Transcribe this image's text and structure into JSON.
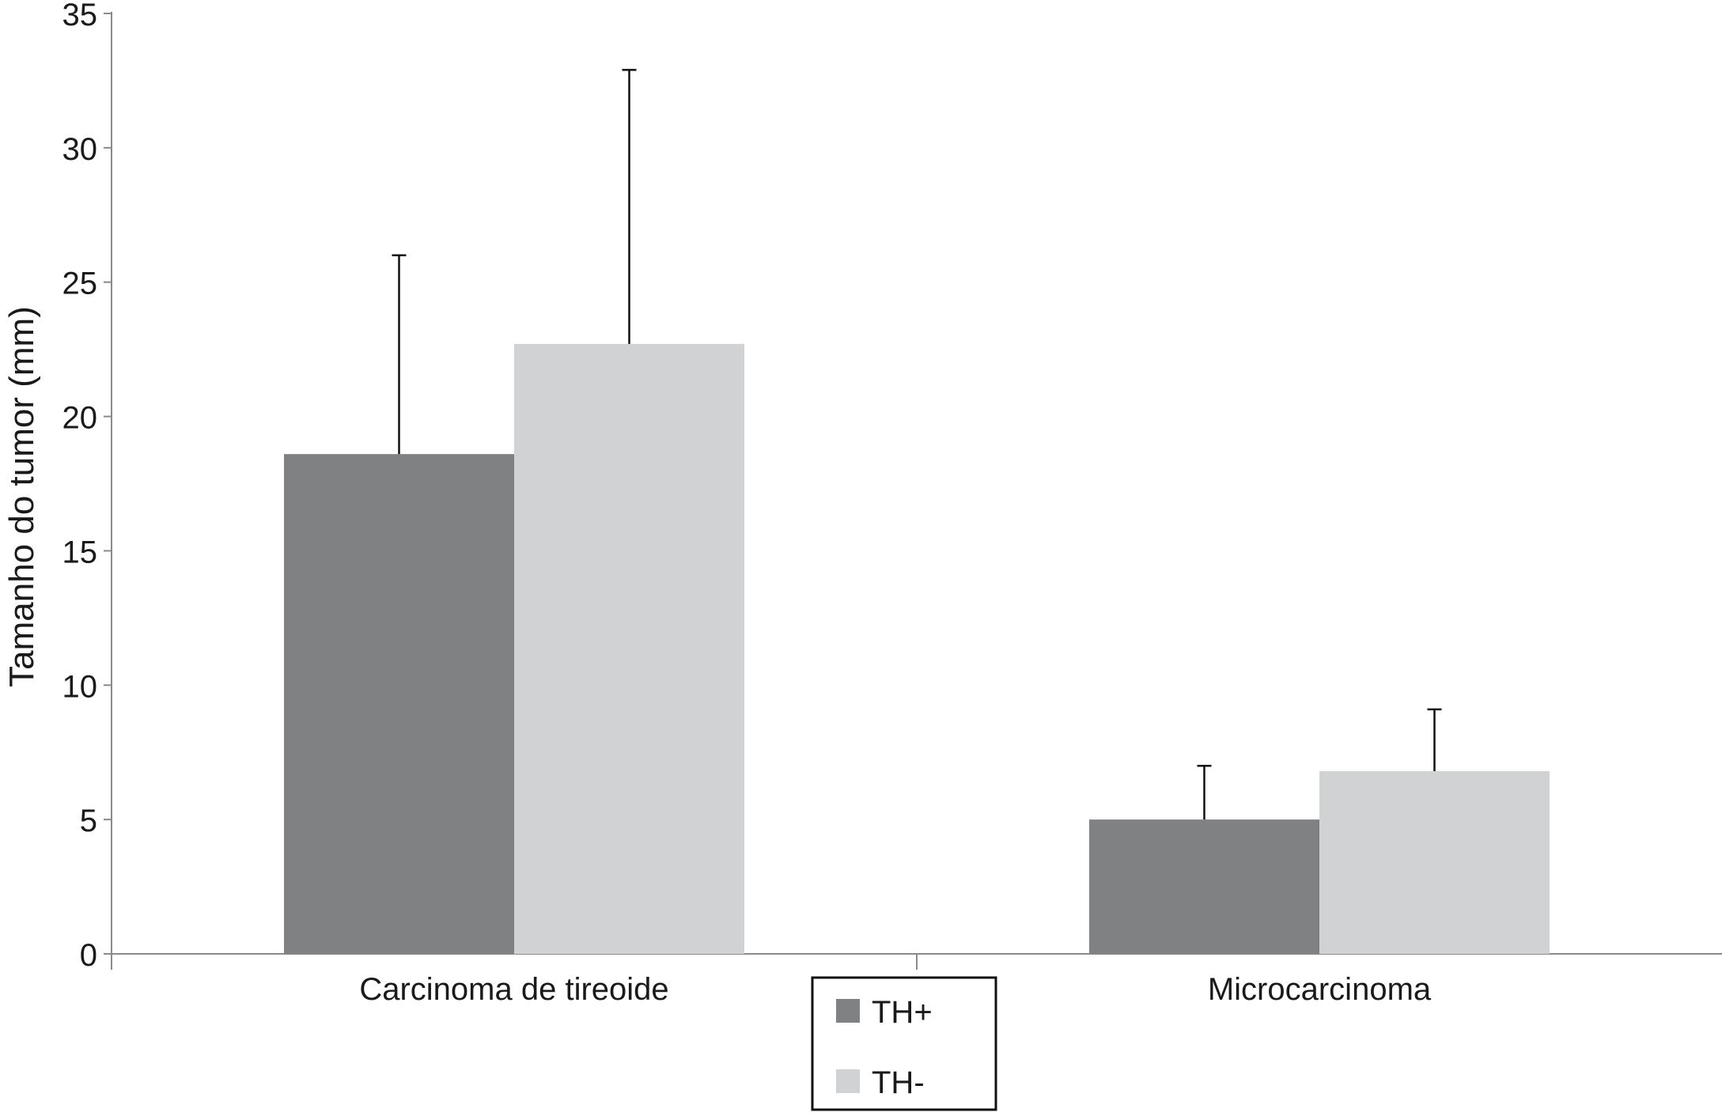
{
  "chart_data": {
    "type": "bar",
    "title": "",
    "xlabel": "",
    "ylabel": "Tamanho do tumor (mm)",
    "ylim": [
      0,
      35
    ],
    "yticks": [
      0,
      5,
      10,
      15,
      20,
      25,
      30,
      35
    ],
    "grid": false,
    "legend_position": "bottom-center",
    "categories": [
      "Carcinoma de tireoide",
      "Microcarcinoma"
    ],
    "series": [
      {
        "name": "TH+",
        "color": "#808183",
        "values": [
          18.6,
          5.0
        ],
        "error_upper": [
          26.0,
          7.0
        ]
      },
      {
        "name": "TH-",
        "color": "#d1d2d4",
        "values": [
          22.7,
          6.8
        ],
        "error_upper": [
          32.9,
          9.1
        ]
      }
    ]
  }
}
